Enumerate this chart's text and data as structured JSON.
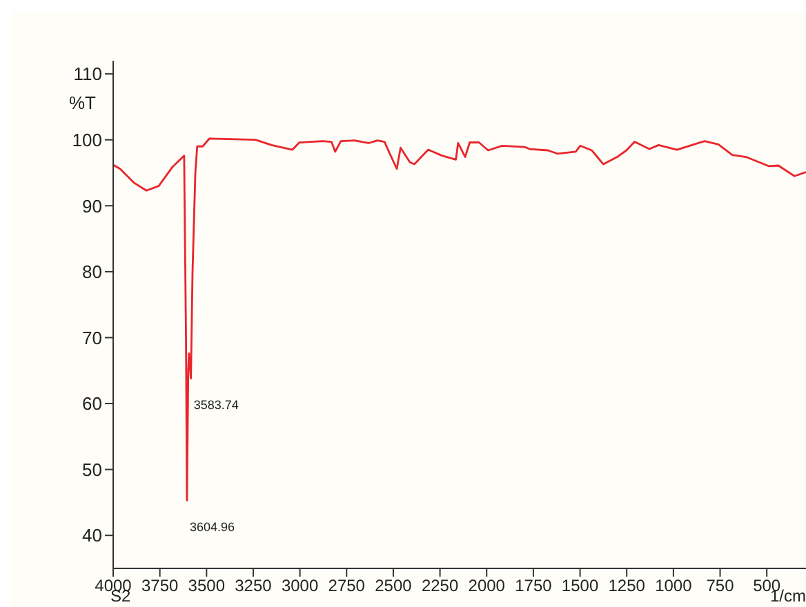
{
  "chart_data": {
    "type": "line",
    "xlabel": "1/cm",
    "ylabel": "%T",
    "x": [
      4000,
      3963,
      3889,
      3822,
      3756,
      3682,
      3620,
      3610,
      3604.96,
      3598,
      3594,
      3583.74,
      3575,
      3560,
      3550,
      3521,
      3484,
      3238,
      3151,
      3040,
      3003,
      2880,
      2831,
      2811,
      2781,
      2707,
      2633,
      2584,
      2547,
      2522,
      2481,
      2461,
      2411,
      2387,
      2313,
      2239,
      2165,
      2153,
      2115,
      2091,
      2041,
      1992,
      1918,
      1795,
      1770,
      1671,
      1622,
      1523,
      1499,
      1437,
      1375,
      1301,
      1252,
      1208,
      1129,
      1079,
      981,
      833,
      759,
      685,
      611,
      488,
      438,
      352,
      290
    ],
    "series": [
      {
        "color": "#e8262b",
        "values": [
          96.2,
          95.6,
          93.5,
          92.3,
          93,
          95.9,
          97.6,
          70,
          45.3,
          65,
          67.6,
          63.8,
          80,
          95,
          99,
          99,
          100.2,
          100,
          99.2,
          98.5,
          99.6,
          99.8,
          99.7,
          98.2,
          99.8,
          99.9,
          99.5,
          99.9,
          99.7,
          98.1,
          95.6,
          98.8,
          96.6,
          96.3,
          98.5,
          97.6,
          97,
          99.5,
          97.4,
          99.6,
          99.6,
          98.4,
          99.1,
          98.9,
          98.6,
          98.4,
          97.9,
          98.2,
          99.1,
          98.4,
          96.3,
          97.4,
          98.4,
          99.7,
          98.6,
          99.2,
          98.5,
          99.8,
          99.3,
          97.7,
          97.4,
          96,
          96.1,
          94.5,
          95.1
        ]
      }
    ],
    "xlim": [
      4000,
      290
    ],
    "xticks": [
      4000,
      3750,
      3500,
      3250,
      3000,
      2750,
      2500,
      2250,
      2000,
      1750,
      1500,
      1250,
      1000,
      750,
      500
    ],
    "ylim": [
      35,
      112
    ],
    "yticks": [
      40,
      50,
      60,
      70,
      80,
      90,
      100,
      110
    ],
    "grid": false,
    "legend": false,
    "annotations": [
      {
        "text": "3604.96",
        "x": 3604.96,
        "y": 45.3
      },
      {
        "text": "3583.74",
        "x": 3583.74,
        "y": 63.8
      },
      "S2"
    ]
  }
}
